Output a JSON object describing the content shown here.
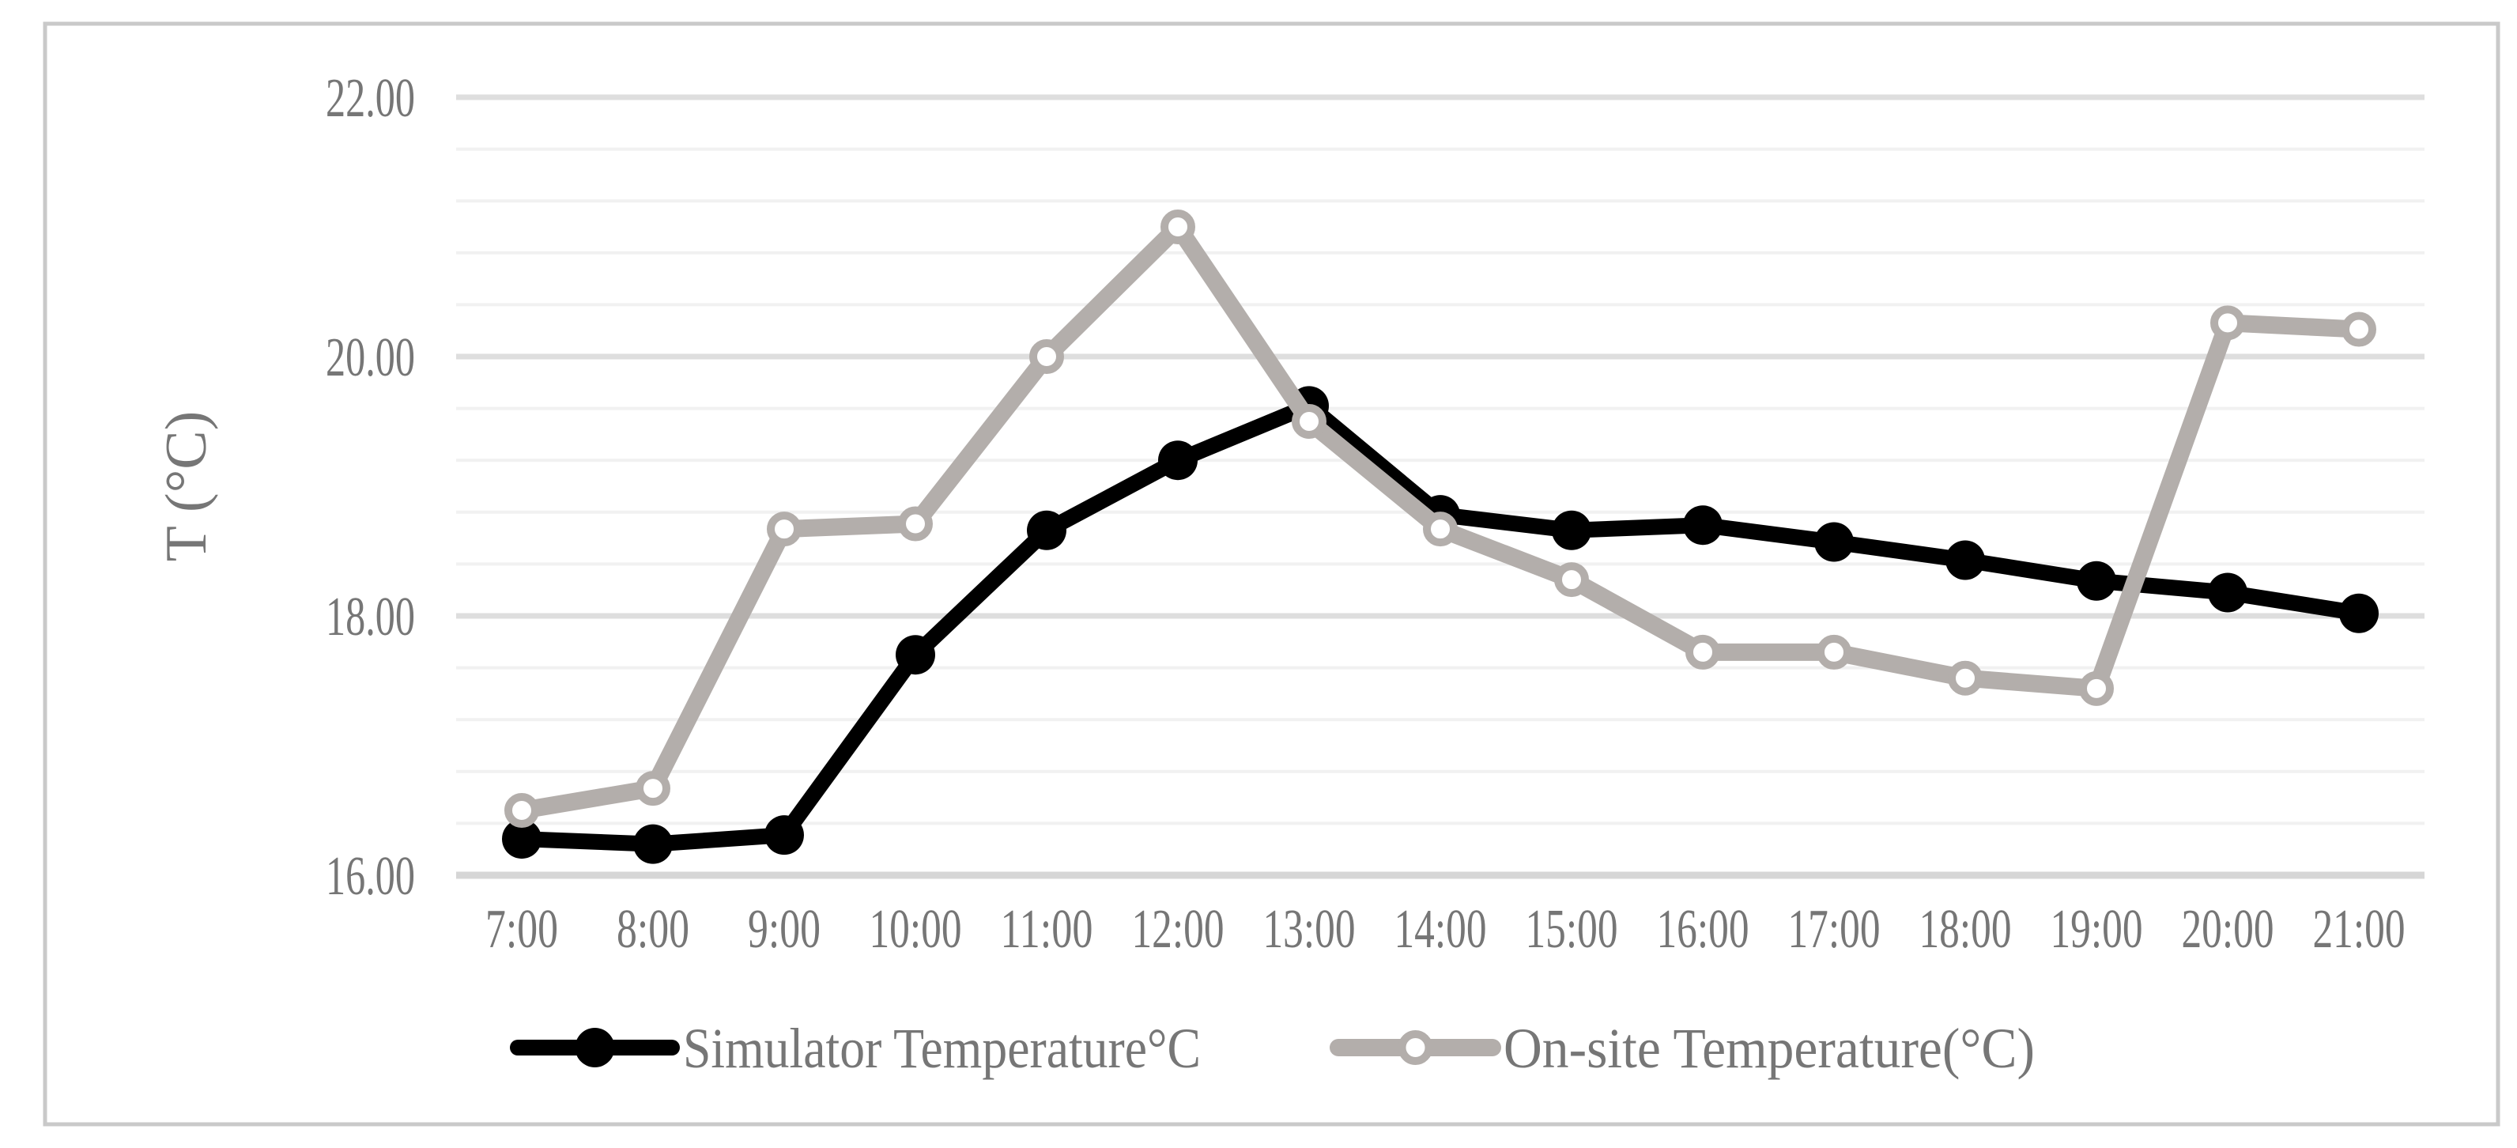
{
  "chart_data": {
    "type": "line",
    "categories": [
      "7:00",
      "8:00",
      "9:00",
      "10:00",
      "11:00",
      "12:00",
      "13:00",
      "14:00",
      "15:00",
      "16:00",
      "17:00",
      "18:00",
      "19:00",
      "20:00",
      "21:00"
    ],
    "series": [
      {
        "name": "Simulator Temperature°C",
        "color": "#000000",
        "marker": "filled-circle",
        "values": [
          16.28,
          16.24,
          16.31,
          17.7,
          18.66,
          19.2,
          19.62,
          18.78,
          18.66,
          18.7,
          18.57,
          18.43,
          18.27,
          18.18,
          18.02
        ]
      },
      {
        "name": "On-site Temperature(°C)",
        "color": "#b3aeab",
        "marker": "open-circle",
        "values": [
          16.5,
          16.67,
          18.67,
          18.71,
          20.0,
          21.0,
          19.5,
          18.67,
          18.28,
          17.72,
          17.72,
          17.52,
          17.44,
          20.26,
          20.21
        ]
      }
    ],
    "xlabel": "",
    "ylabel": "T (°C)",
    "ylim": [
      16,
      22
    ],
    "y_major_unit": 2,
    "y_minor_unit": 0.4,
    "y_tick_labels": [
      "16.00",
      "18.00",
      "20.00",
      "22.00"
    ],
    "y_tick_values": [
      16,
      18,
      20,
      22
    ],
    "grid": "horizontal major+minor",
    "legend_position": "bottom"
  },
  "colors": {
    "background": "#ffffff",
    "frame_border": "#c9c9c9",
    "grid_minor": "#f1f1f1",
    "grid_major": "#dedede",
    "axis_line": "#d6d6d6",
    "tick_text": "#767676",
    "series_simulator": "#000000",
    "series_onsite": "#b3aeab"
  }
}
